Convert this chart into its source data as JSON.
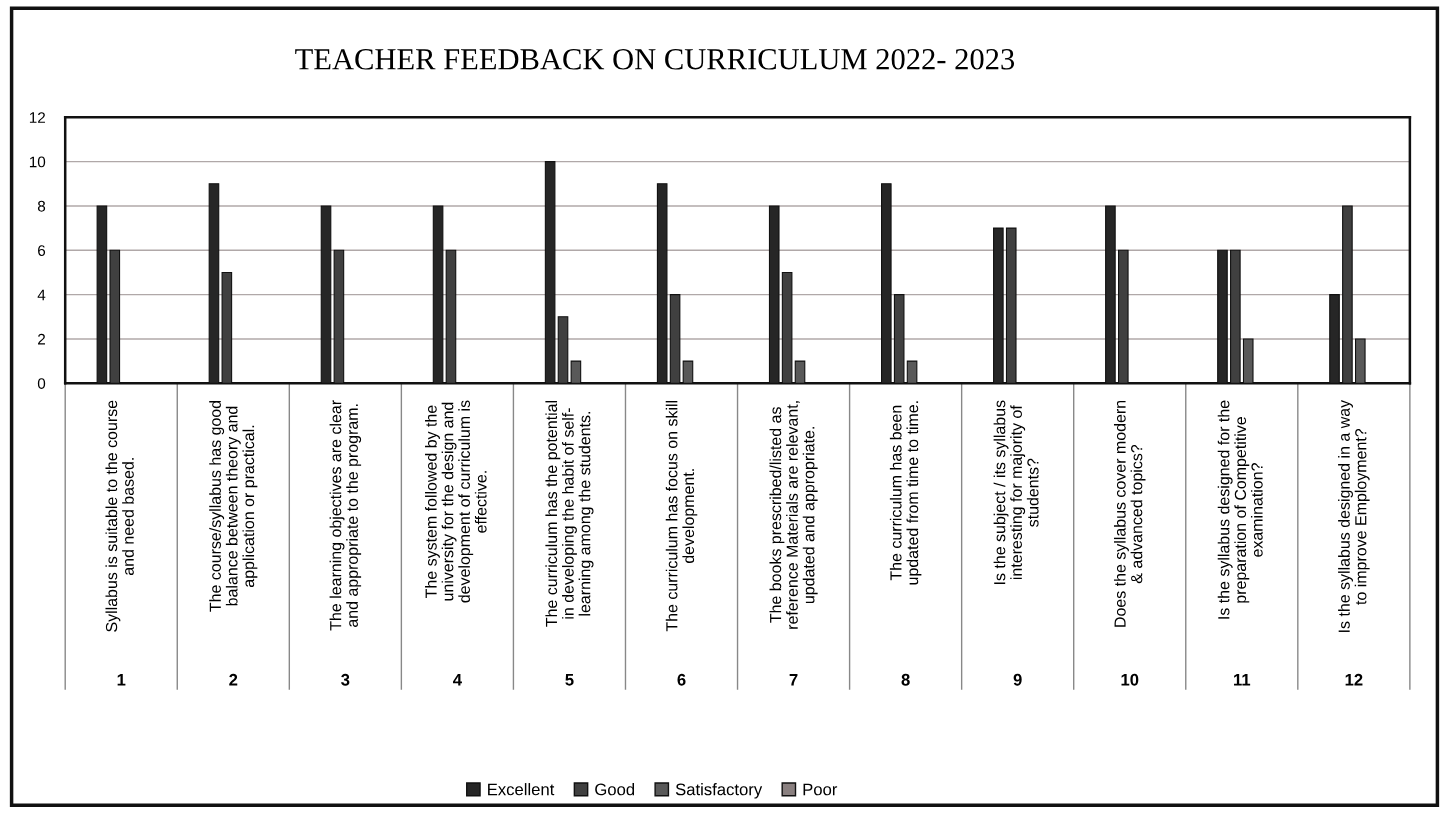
{
  "chart_data": {
    "type": "bar",
    "title": "TEACHER FEEDBACK ON CURRICULUM 2022- 2023",
    "categories": [
      "Syllabus is suitable to the course\nand need based.",
      "The course/syllabus has good\nbalance between theory and\napplication or practical.",
      "The learning objectives are clear\nand appropriate to the program.",
      "The system followed by the\nuniversity for the design and\ndevelopment of curriculum is\neffective.",
      "The curriculum has the potential\nin developing the habit of self-\nlearning among the students.",
      "The curriculum has focus on skill\ndevelopment.",
      "The books prescribed/listed as\nreference Materials are relevant,\nupdated and appropriate.",
      "The curriculum has been\nupdated from time to time.",
      "Is the subject / its syllabus\ninteresting for majority of\nstudents?",
      "Does the syllabus cover modern\n& advanced topics?",
      "Is the syllabus designed for the\npreparation of Competitive\nexamination?",
      "Is the syllabus designed in a way\nto improve Employment?"
    ],
    "annotations": [
      "1",
      "2",
      "3",
      "4",
      "5",
      "6",
      "7",
      "8",
      "9",
      "10",
      "11",
      "12"
    ],
    "series": [
      {
        "name": "Excellent",
        "color": "#262626",
        "values": [
          8,
          9,
          8,
          8,
          10,
          9,
          8,
          9,
          7,
          8,
          6,
          4
        ]
      },
      {
        "name": "Good",
        "color": "#404040",
        "values": [
          6,
          5,
          6,
          6,
          3,
          4,
          5,
          4,
          7,
          6,
          6,
          8
        ]
      },
      {
        "name": "Satisfactory",
        "color": "#595959",
        "values": [
          null,
          null,
          null,
          null,
          1,
          1,
          1,
          1,
          null,
          null,
          2,
          2
        ]
      },
      {
        "name": "Poor",
        "color": "#8a8080",
        "values": [
          null,
          null,
          null,
          null,
          null,
          null,
          null,
          null,
          null,
          null,
          null,
          null
        ]
      }
    ],
    "ylim": [
      0,
      12
    ],
    "yticks": [
      0,
      2,
      4,
      6,
      8,
      10,
      12
    ],
    "grid": "y",
    "legend": "bottom"
  }
}
